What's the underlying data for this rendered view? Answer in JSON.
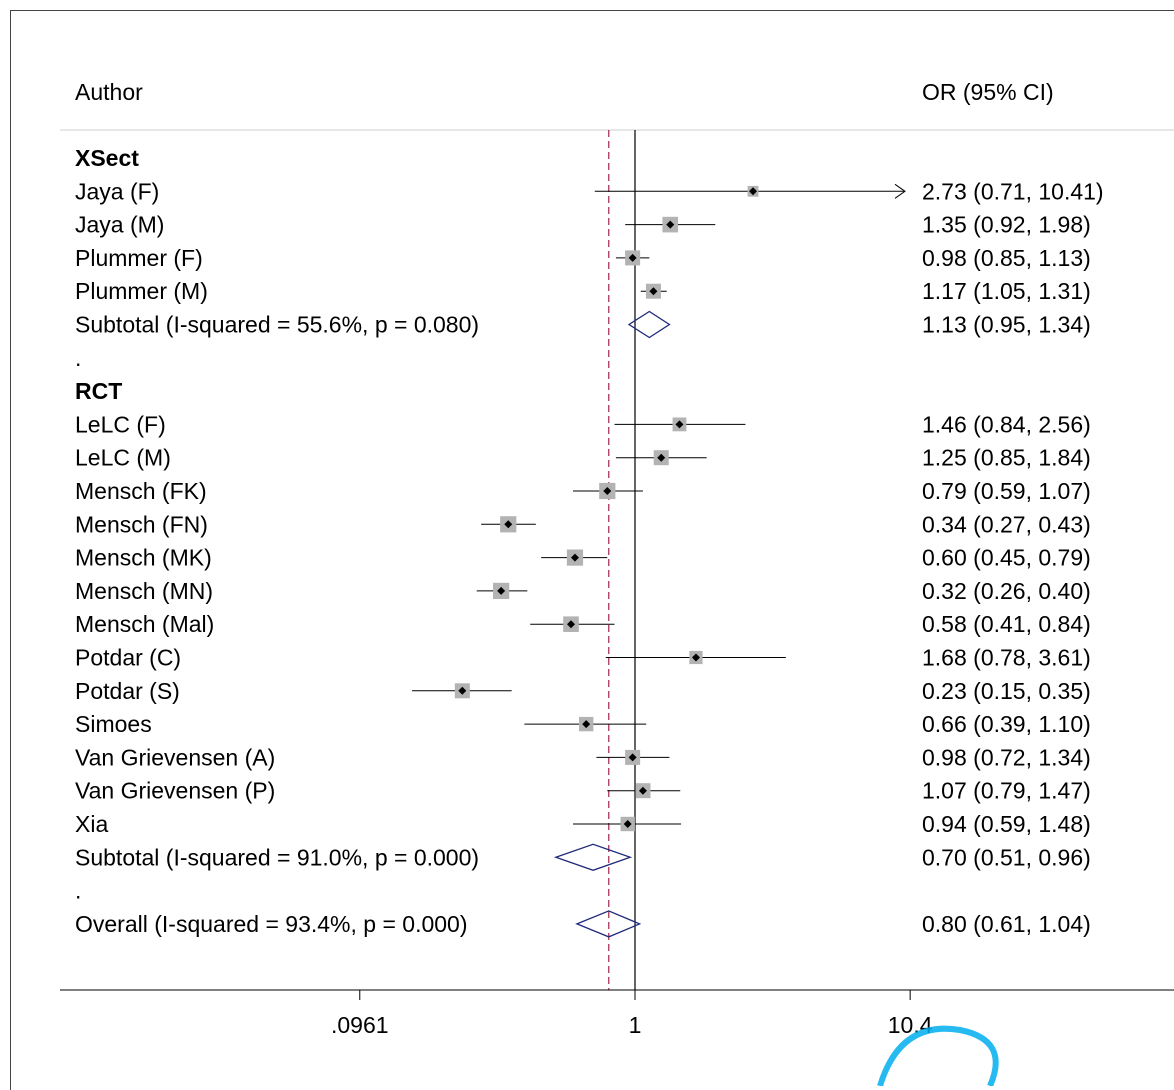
{
  "header": {
    "author": "Author",
    "or_ci": "OR (95% CI)"
  },
  "watermark_color": "#00aeef",
  "chart_data": {
    "type": "forest",
    "scale": "log",
    "null_value": 1,
    "overall_estimate": 0.8,
    "axis_ticks": [
      {
        "value": 0.0961,
        "label": ".0961"
      },
      {
        "value": 1,
        "label": "1"
      },
      {
        "value": 10.4,
        "label": "10.4"
      }
    ],
    "rows": [
      {
        "kind": "group",
        "label": "XSect"
      },
      {
        "kind": "study",
        "label": "Jaya (F)",
        "or": 2.73,
        "lo": 0.71,
        "hi": 10.41,
        "text": "2.73 (0.71, 10.41)",
        "weight": 0.4
      },
      {
        "kind": "study",
        "label": "Jaya (M)",
        "or": 1.35,
        "lo": 0.92,
        "hi": 1.98,
        "text": "1.35 (0.92, 1.98)",
        "weight": 0.8
      },
      {
        "kind": "study",
        "label": "Plummer (F)",
        "or": 0.98,
        "lo": 0.85,
        "hi": 1.13,
        "text": "0.98 (0.85, 1.13)",
        "weight": 0.75
      },
      {
        "kind": "study",
        "label": "Plummer (M)",
        "or": 1.17,
        "lo": 1.05,
        "hi": 1.31,
        "text": "1.17 (1.05, 1.31)",
        "weight": 0.75
      },
      {
        "kind": "subtotal",
        "label": "Subtotal  (I-squared = 55.6%, p = 0.080)",
        "or": 1.13,
        "lo": 0.95,
        "hi": 1.34,
        "text": "1.13 (0.95, 1.34)"
      },
      {
        "kind": "spacer",
        "label": "."
      },
      {
        "kind": "group",
        "label": "RCT"
      },
      {
        "kind": "study",
        "label": "LeLC (F)",
        "or": 1.46,
        "lo": 0.84,
        "hi": 2.56,
        "text": "1.46 (0.84, 2.56)",
        "weight": 0.65
      },
      {
        "kind": "study",
        "label": "LeLC (M)",
        "or": 1.25,
        "lo": 0.85,
        "hi": 1.84,
        "text": "1.25 (0.85, 1.84)",
        "weight": 0.75
      },
      {
        "kind": "study",
        "label": "Mensch (FK)",
        "or": 0.79,
        "lo": 0.59,
        "hi": 1.07,
        "text": "0.79 (0.59, 1.07)",
        "weight": 0.85
      },
      {
        "kind": "study",
        "label": "Mensch (FN)",
        "or": 0.34,
        "lo": 0.27,
        "hi": 0.43,
        "text": "0.34 (0.27, 0.43)",
        "weight": 0.85
      },
      {
        "kind": "study",
        "label": "Mensch (MK)",
        "or": 0.6,
        "lo": 0.45,
        "hi": 0.79,
        "text": "0.60 (0.45, 0.79)",
        "weight": 0.85
      },
      {
        "kind": "study",
        "label": "Mensch (MN)",
        "or": 0.32,
        "lo": 0.26,
        "hi": 0.4,
        "text": "0.32 (0.26, 0.40)",
        "weight": 0.85
      },
      {
        "kind": "study",
        "label": "Mensch (Mal)",
        "or": 0.58,
        "lo": 0.41,
        "hi": 0.84,
        "text": "0.58 (0.41, 0.84)",
        "weight": 0.8
      },
      {
        "kind": "study",
        "label": "Potdar (C)",
        "or": 1.68,
        "lo": 0.78,
        "hi": 3.61,
        "text": "1.68 (0.78, 3.61)",
        "weight": 0.6
      },
      {
        "kind": "study",
        "label": "Potdar (S)",
        "or": 0.23,
        "lo": 0.15,
        "hi": 0.35,
        "text": "0.23 (0.15, 0.35)",
        "weight": 0.75
      },
      {
        "kind": "study",
        "label": "Simoes",
        "or": 0.66,
        "lo": 0.39,
        "hi": 1.1,
        "text": "0.66 (0.39, 1.10)",
        "weight": 0.7
      },
      {
        "kind": "study",
        "label": "Van Grievensen (A)",
        "or": 0.98,
        "lo": 0.72,
        "hi": 1.34,
        "text": "0.98 (0.72, 1.34)",
        "weight": 0.75
      },
      {
        "kind": "study",
        "label": "Van Grievensen (P)",
        "or": 1.07,
        "lo": 0.79,
        "hi": 1.47,
        "text": "1.07 (0.79, 1.47)",
        "weight": 0.75
      },
      {
        "kind": "study",
        "label": "Xia",
        "or": 0.94,
        "lo": 0.59,
        "hi": 1.48,
        "text": "0.94 (0.59, 1.48)",
        "weight": 0.7
      },
      {
        "kind": "subtotal",
        "label": "Subtotal  (I-squared = 91.0%, p = 0.000)",
        "or": 0.7,
        "lo": 0.51,
        "hi": 0.96,
        "text": "0.70 (0.51, 0.96)"
      },
      {
        "kind": "spacer",
        "label": "."
      },
      {
        "kind": "overall",
        "label": "Overall  (I-squared = 93.4%, p = 0.000)",
        "or": 0.8,
        "lo": 0.61,
        "hi": 1.04,
        "text": "0.80 (0.61, 1.04)"
      }
    ]
  }
}
